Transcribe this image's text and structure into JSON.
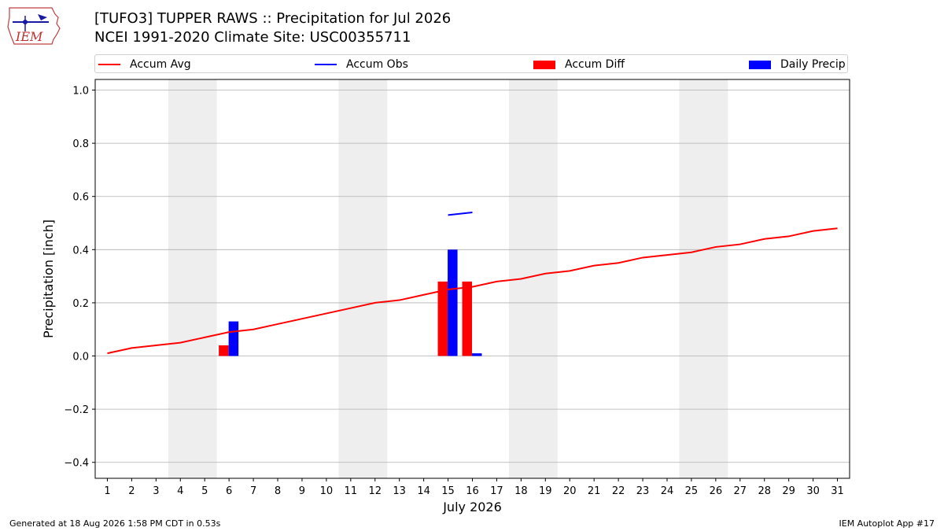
{
  "header": {
    "title_line1": "[TUFO3] TUPPER RAWS :: Precipitation for Jul 2026",
    "title_line2": "NCEI 1991-2020 Climate Site: USC00355711",
    "logo_text": "IEM"
  },
  "legend": {
    "items": [
      {
        "label": "Accum Avg",
        "kind": "line",
        "color": "#ff0000"
      },
      {
        "label": "Accum Obs",
        "kind": "line",
        "color": "#0000ff"
      },
      {
        "label": "Accum Diff",
        "kind": "box",
        "color": "#ff0000"
      },
      {
        "label": "Daily Precip",
        "kind": "box",
        "color": "#0000ff"
      }
    ]
  },
  "footer": {
    "generated": "Generated at 18 Aug 2026 1:58 PM CDT in 0.53s",
    "app": "IEM Autoplot App #17"
  },
  "chart_data": {
    "type": "bar",
    "xlabel": "July 2026",
    "ylabel": "Precipitation [inch]",
    "xlim": [
      0.5,
      31.5
    ],
    "ylim": [
      -0.46,
      1.04
    ],
    "yticks": [
      -0.4,
      -0.2,
      0.0,
      0.2,
      0.4,
      0.6,
      0.8,
      1.0
    ],
    "ytick_labels": [
      "−0.4",
      "−0.2",
      "0.0",
      "0.2",
      "0.4",
      "0.6",
      "0.8",
      "1.0"
    ],
    "xticks": [
      1,
      2,
      3,
      4,
      5,
      6,
      7,
      8,
      9,
      10,
      11,
      12,
      13,
      14,
      15,
      16,
      17,
      18,
      19,
      20,
      21,
      22,
      23,
      24,
      25,
      26,
      27,
      28,
      29,
      30,
      31
    ],
    "grid": "horizontal",
    "weekend_shading": [
      [
        3.5,
        5.5
      ],
      [
        10.5,
        12.5
      ],
      [
        17.5,
        19.5
      ],
      [
        24.5,
        26.5
      ]
    ],
    "colors": {
      "avg": "#ff0000",
      "obs": "#0000ff",
      "diff": "#ff0000",
      "daily": "#0000ff",
      "weekend": "#eeeeee",
      "grid": "#b0b0b0"
    },
    "accum_avg": {
      "x": [
        1,
        2,
        3,
        4,
        5,
        6,
        7,
        8,
        9,
        10,
        11,
        12,
        13,
        14,
        15,
        16,
        17,
        18,
        19,
        20,
        21,
        22,
        23,
        24,
        25,
        26,
        27,
        28,
        29,
        30,
        31
      ],
      "y": [
        0.01,
        0.03,
        0.04,
        0.05,
        0.07,
        0.09,
        0.1,
        0.12,
        0.14,
        0.16,
        0.18,
        0.2,
        0.21,
        0.23,
        0.25,
        0.26,
        0.28,
        0.29,
        0.31,
        0.32,
        0.34,
        0.35,
        0.37,
        0.38,
        0.39,
        0.41,
        0.42,
        0.44,
        0.45,
        0.47,
        0.48
      ]
    },
    "accum_obs": {
      "x": [
        15,
        16
      ],
      "y": [
        0.53,
        0.54
      ]
    },
    "accum_diff": {
      "x": [
        6,
        15,
        16
      ],
      "y": [
        0.04,
        0.28,
        0.28
      ]
    },
    "daily_precip": {
      "x": [
        6,
        15,
        16
      ],
      "y": [
        0.13,
        0.4,
        0.01
      ]
    }
  }
}
